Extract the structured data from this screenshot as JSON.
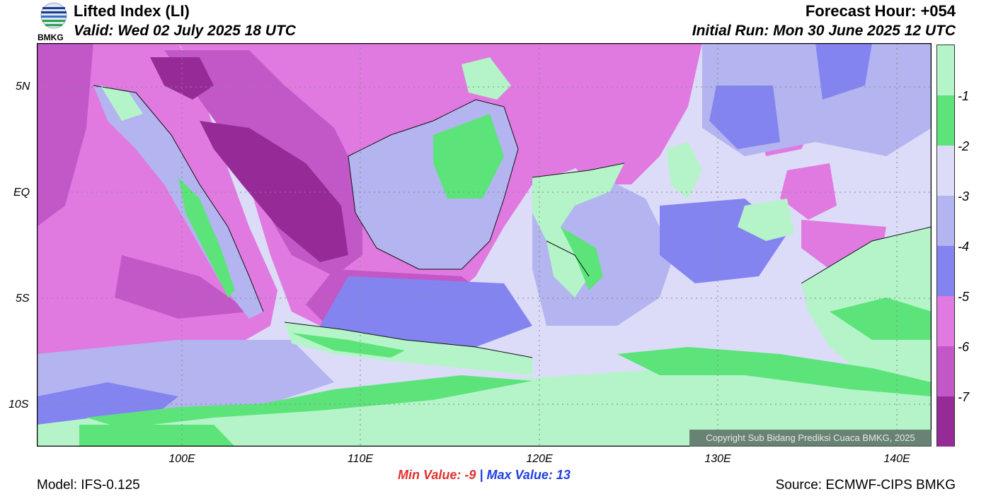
{
  "header": {
    "title": "Lifted Index (LI)",
    "valid": "Valid: Wed 02 July 2025 18 UTC",
    "forecast_hour": "Forecast Hour: +054",
    "initial_run": "Initial Run: Mon 30 June 2025 12 UTC",
    "logo_text": "BMKG"
  },
  "map": {
    "lat_labels": [
      "5N",
      "EQ",
      "5S",
      "10S"
    ],
    "lon_labels": [
      "100E",
      "110E",
      "120E",
      "130E",
      "140E"
    ],
    "colors": {
      "gt_-1": "#b4f4c8",
      "-2_to_-1": "#5ce47a",
      "-3_to_-2": "#dcdcf8",
      "-4_to_-3": "#b4b4f0",
      "-5_to_-4": "#8484f0",
      "-6_to_-5": "#e07ae0",
      "-7_to_-6": "#c258c8",
      "lt_-7": "#962a96"
    }
  },
  "colorbar": {
    "labels": [
      "-1",
      "-2",
      "-3",
      "-4",
      "-5",
      "-6",
      "-7"
    ],
    "colors": [
      "#b4f4c8",
      "#5ce47a",
      "#dcdcf8",
      "#b4b4f0",
      "#8484f0",
      "#e07ae0",
      "#c258c8",
      "#962a96"
    ]
  },
  "stats": {
    "min_label": "Min Value:",
    "min_value": "-9",
    "separator": "|",
    "max_label": "Max Value:",
    "max_value": "13"
  },
  "footer": {
    "model": "Model: IFS-0.125",
    "source": "Source: ECMWF-CIPS BMKG",
    "copyright": "Copyright Sub Bidang Prediksi Cuaca BMKG, 2025"
  }
}
